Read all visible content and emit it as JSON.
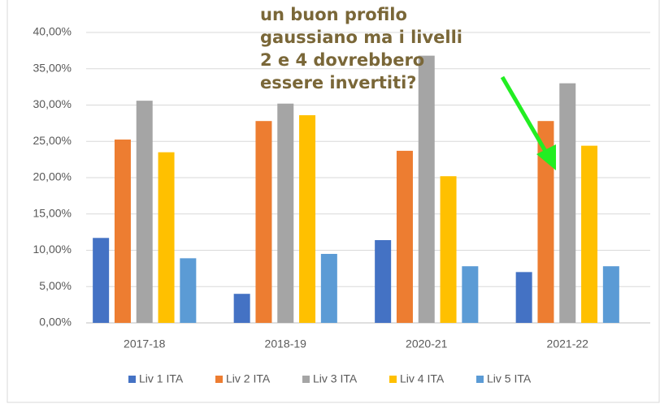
{
  "chart_data": {
    "type": "bar",
    "annotation": [
      "un buon profilo",
      "gaussiano ma i livelli",
      "2 e 4 dovrebbero",
      "essere invertiti?"
    ],
    "categories": [
      "2017-18",
      "2018-19",
      "2020-21",
      "2021-22"
    ],
    "series": [
      {
        "name": "Liv 1 ITA",
        "color": "#4472c4",
        "values": [
          11.7,
          4.0,
          11.4,
          7.0
        ]
      },
      {
        "name": "Liv 2 ITA",
        "color": "#ed7d31",
        "values": [
          25.25,
          27.8,
          23.7,
          27.8
        ]
      },
      {
        "name": "Liv 3 ITA",
        "color": "#a5a5a5",
        "values": [
          30.6,
          30.2,
          36.8,
          33.0
        ]
      },
      {
        "name": "Liv 4 ITA",
        "color": "#ffc000",
        "values": [
          23.5,
          28.6,
          20.2,
          24.4
        ]
      },
      {
        "name": "Liv 5 ITA",
        "color": "#5b9bd5",
        "values": [
          8.9,
          9.5,
          7.8,
          7.8
        ]
      }
    ],
    "ylim": [
      0,
      40
    ],
    "yticks": [
      {
        "value": 0,
        "label": "0,00%"
      },
      {
        "value": 5,
        "label": "5,00%"
      },
      {
        "value": 10,
        "label": "10,00%"
      },
      {
        "value": 15,
        "label": "15,00%"
      },
      {
        "value": 20,
        "label": "20,00%"
      },
      {
        "value": 25,
        "label": "25,00%"
      },
      {
        "value": 30,
        "label": "30,00%"
      },
      {
        "value": 35,
        "label": "35,00%"
      },
      {
        "value": 40,
        "label": "40,00%"
      }
    ],
    "grid": true,
    "legend": "bottom"
  }
}
